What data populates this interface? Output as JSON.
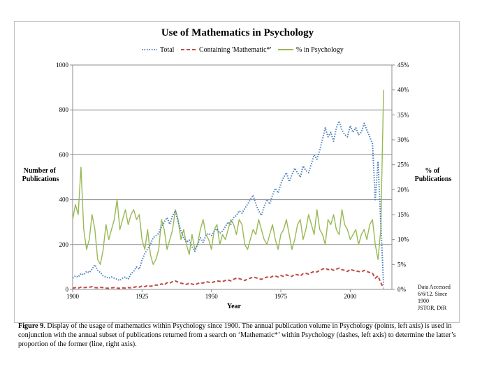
{
  "chart_data": {
    "type": "line",
    "title": "Use of Mathematics in Psychology",
    "xlabel": "Year",
    "ylabel_left": [
      "Number of",
      "Publications"
    ],
    "ylabel_right": [
      "% of",
      "Publications"
    ],
    "xlim": [
      1900,
      2015
    ],
    "ylim_left": [
      0,
      1000
    ],
    "ylim_right": [
      0,
      45
    ],
    "x_ticks": [
      1900,
      1925,
      1950,
      1975,
      2000
    ],
    "y_left_ticks": [
      0,
      200,
      400,
      600,
      800,
      1000
    ],
    "y_right_ticks": [
      "0%",
      "5%",
      "10%",
      "15%",
      "20%",
      "25%",
      "30%",
      "35%",
      "40%",
      "45%"
    ],
    "grid": true,
    "legend_position": "top",
    "annotation": [
      "Data Accessed",
      "6/6/12. Since",
      "1900",
      "JSTOR, DfR"
    ],
    "series": [
      {
        "name": "Total",
        "axis": "left",
        "style": "dotted",
        "color": "#4a7ebb",
        "x": [
          1900,
          1901,
          1902,
          1903,
          1904,
          1905,
          1906,
          1907,
          1908,
          1909,
          1910,
          1911,
          1912,
          1913,
          1914,
          1915,
          1916,
          1917,
          1918,
          1919,
          1920,
          1921,
          1922,
          1923,
          1924,
          1925,
          1926,
          1927,
          1928,
          1929,
          1930,
          1931,
          1932,
          1933,
          1934,
          1935,
          1936,
          1937,
          1938,
          1939,
          1940,
          1941,
          1942,
          1943,
          1944,
          1945,
          1946,
          1947,
          1948,
          1949,
          1950,
          1951,
          1952,
          1953,
          1954,
          1955,
          1956,
          1957,
          1958,
          1959,
          1960,
          1961,
          1962,
          1963,
          1964,
          1965,
          1966,
          1967,
          1968,
          1969,
          1970,
          1971,
          1972,
          1973,
          1974,
          1975,
          1976,
          1977,
          1978,
          1979,
          1980,
          1981,
          1982,
          1983,
          1984,
          1985,
          1986,
          1987,
          1988,
          1989,
          1990,
          1991,
          1992,
          1993,
          1994,
          1995,
          1996,
          1997,
          1998,
          1999,
          2000,
          2001,
          2002,
          2003,
          2004,
          2005,
          2006,
          2007,
          2008,
          2009,
          2010,
          2011,
          2012
        ],
        "values": [
          50,
          60,
          55,
          70,
          65,
          80,
          75,
          90,
          110,
          85,
          75,
          60,
          55,
          50,
          55,
          50,
          45,
          40,
          50,
          55,
          45,
          70,
          80,
          100,
          90,
          130,
          160,
          180,
          200,
          230,
          240,
          250,
          280,
          300,
          320,
          290,
          330,
          350,
          300,
          260,
          230,
          210,
          220,
          190,
          170,
          200,
          230,
          210,
          240,
          250,
          240,
          260,
          270,
          250,
          260,
          280,
          300,
          290,
          320,
          330,
          350,
          340,
          360,
          380,
          400,
          420,
          380,
          350,
          330,
          370,
          400,
          380,
          420,
          450,
          430,
          470,
          500,
          520,
          480,
          510,
          540,
          520,
          500,
          550,
          530,
          520,
          560,
          600,
          580,
          620,
          670,
          720,
          680,
          700,
          660,
          720,
          750,
          710,
          690,
          680,
          730,
          700,
          720,
          690,
          700,
          740,
          710,
          680,
          650,
          400,
          570,
          300,
          20
        ]
      },
      {
        "name": "Containing 'Mathematic*'",
        "axis": "left",
        "style": "dashed",
        "color": "#be4b48",
        "x": [
          1900,
          1901,
          1902,
          1903,
          1904,
          1905,
          1906,
          1907,
          1908,
          1909,
          1910,
          1911,
          1912,
          1913,
          1914,
          1915,
          1916,
          1917,
          1918,
          1919,
          1920,
          1921,
          1922,
          1923,
          1924,
          1925,
          1926,
          1927,
          1928,
          1929,
          1930,
          1931,
          1932,
          1933,
          1934,
          1935,
          1936,
          1937,
          1938,
          1939,
          1940,
          1941,
          1942,
          1943,
          1944,
          1945,
          1946,
          1947,
          1948,
          1949,
          1950,
          1951,
          1952,
          1953,
          1954,
          1955,
          1956,
          1957,
          1958,
          1959,
          1960,
          1961,
          1962,
          1963,
          1964,
          1965,
          1966,
          1967,
          1968,
          1969,
          1970,
          1971,
          1972,
          1973,
          1974,
          1975,
          1976,
          1977,
          1978,
          1979,
          1980,
          1981,
          1982,
          1983,
          1984,
          1985,
          1986,
          1987,
          1988,
          1989,
          1990,
          1991,
          1992,
          1993,
          1994,
          1995,
          1996,
          1997,
          1998,
          1999,
          2000,
          2001,
          2002,
          2003,
          2004,
          2005,
          2006,
          2007,
          2008,
          2009,
          2010,
          2011,
          2012
        ],
        "values": [
          5,
          8,
          6,
          10,
          8,
          9,
          10,
          12,
          8,
          7,
          9,
          8,
          6,
          5,
          7,
          8,
          6,
          5,
          7,
          6,
          8,
          7,
          9,
          12,
          10,
          15,
          12,
          18,
          14,
          16,
          20,
          18,
          25,
          20,
          30,
          28,
          35,
          38,
          32,
          28,
          25,
          22,
          28,
          24,
          20,
          26,
          30,
          28,
          35,
          32,
          30,
          34,
          38,
          36,
          35,
          40,
          42,
          38,
          45,
          50,
          48,
          44,
          40,
          46,
          50,
          55,
          52,
          48,
          45,
          50,
          55,
          52,
          58,
          60,
          55,
          62,
          58,
          65,
          60,
          58,
          68,
          65,
          60,
          70,
          72,
          68,
          75,
          80,
          78,
          85,
          90,
          95,
          88,
          92,
          85,
          90,
          95,
          88,
          85,
          80,
          90,
          85,
          82,
          80,
          78,
          85,
          80,
          75,
          72,
          50,
          60,
          30,
          5
        ]
      },
      {
        "name": "% in Psychology",
        "axis": "right",
        "style": "solid",
        "color": "#98b954",
        "x": [
          1900,
          1901,
          1902,
          1903,
          1904,
          1905,
          1906,
          1907,
          1908,
          1909,
          1910,
          1911,
          1912,
          1913,
          1914,
          1915,
          1916,
          1917,
          1918,
          1919,
          1920,
          1921,
          1922,
          1923,
          1924,
          1925,
          1926,
          1927,
          1928,
          1929,
          1930,
          1931,
          1932,
          1933,
          1934,
          1935,
          1936,
          1937,
          1938,
          1939,
          1940,
          1941,
          1942,
          1943,
          1944,
          1945,
          1946,
          1947,
          1948,
          1949,
          1950,
          1951,
          1952,
          1953,
          1954,
          1955,
          1956,
          1957,
          1958,
          1959,
          1960,
          1961,
          1962,
          1963,
          1964,
          1965,
          1966,
          1967,
          1968,
          1969,
          1970,
          1971,
          1972,
          1973,
          1974,
          1975,
          1976,
          1977,
          1978,
          1979,
          1980,
          1981,
          1982,
          1983,
          1984,
          1985,
          1986,
          1987,
          1988,
          1989,
          1990,
          1991,
          1992,
          1993,
          1994,
          1995,
          1996,
          1997,
          1998,
          1999,
          2000,
          2001,
          2002,
          2003,
          2004,
          2005,
          2006,
          2007,
          2008,
          2009,
          2010,
          2011,
          2012
        ],
        "values": [
          14,
          17,
          15,
          24.5,
          12,
          8,
          10,
          15,
          12,
          6,
          5,
          8,
          13,
          10,
          12,
          14,
          18,
          12,
          14,
          16,
          13,
          15,
          16,
          14,
          15,
          10,
          8,
          12,
          7,
          5,
          6,
          8,
          14,
          12,
          8,
          10,
          12,
          16,
          14,
          10,
          12,
          9,
          7,
          11,
          8,
          9,
          12,
          14,
          11,
          10,
          8,
          12,
          13,
          9,
          11,
          10,
          12,
          14,
          13,
          11,
          14,
          13,
          9,
          8,
          10,
          12,
          11,
          14,
          12,
          10,
          9,
          11,
          13,
          10,
          8,
          11,
          12,
          14,
          11,
          8,
          10,
          13,
          14,
          10,
          12,
          15,
          13,
          11,
          16,
          12,
          11,
          9,
          14,
          13,
          15,
          12,
          11,
          16,
          13,
          12,
          10,
          11,
          12,
          9,
          11,
          12,
          10,
          13,
          14,
          9,
          6,
          12,
          40
        ]
      }
    ]
  },
  "caption": {
    "figure_label": "Figure 9",
    "text": ". Display of the usage of mathematics within Psychology since 1900. The annual publication volume in Psychology (points, left axis) is used in conjunction with the annual subset of publications returned from a search on ‘Mathematic*’ within Psychology (dashes, left axis) to determine the latter’s proportion of the former (line, right axis)."
  }
}
